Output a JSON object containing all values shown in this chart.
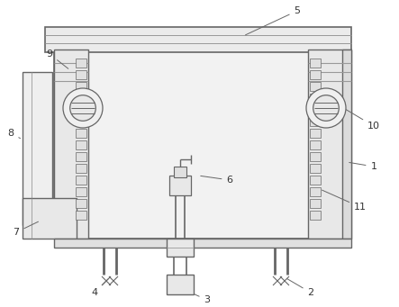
{
  "bg_color": "#ffffff",
  "line_color": "#666666",
  "label_color": "#333333",
  "fig_width": 4.43,
  "fig_height": 3.41,
  "dpi": 100
}
